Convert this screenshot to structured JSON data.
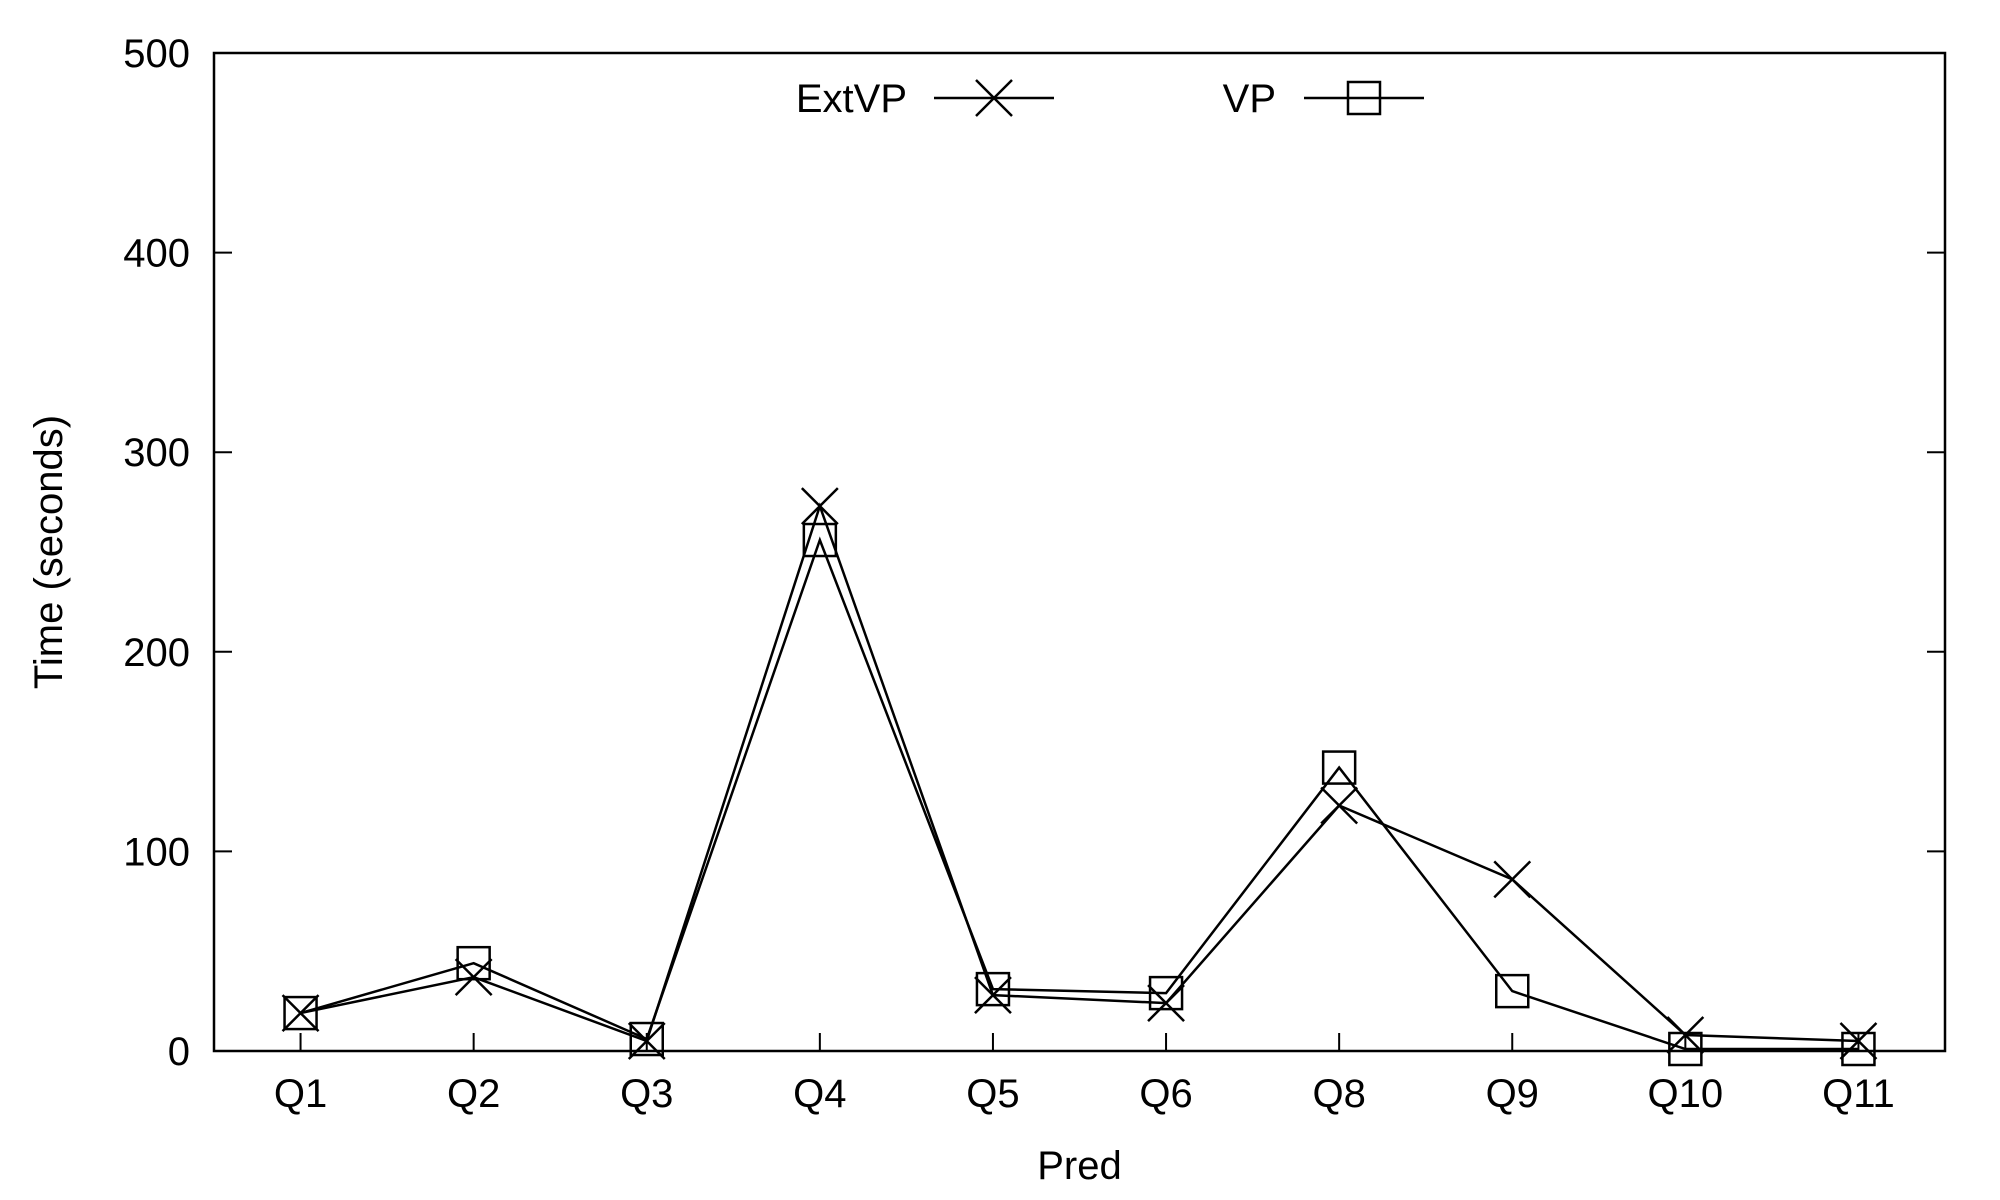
{
  "chart_data": {
    "type": "line",
    "title": "",
    "xlabel": "Pred",
    "ylabel": "Time (seconds)",
    "categories": [
      "Q1",
      "Q2",
      "Q3",
      "Q4",
      "Q5",
      "Q6",
      "Q8",
      "Q9",
      "Q10",
      "Q11"
    ],
    "ylim": [
      0,
      500
    ],
    "yticks": [
      "0",
      "100",
      "200",
      "300",
      "400",
      "500"
    ],
    "grid": false,
    "legend_position": "top-center",
    "series": [
      {
        "name": "ExtVP",
        "marker": "cross",
        "color": "#000000",
        "values": [
          19,
          37,
          5,
          273,
          28,
          24,
          123,
          86,
          8,
          5
        ]
      },
      {
        "name": "VP",
        "marker": "square",
        "color": "#000000",
        "values": [
          19,
          44,
          6,
          256,
          31,
          29,
          142,
          30,
          1,
          1
        ]
      }
    ]
  }
}
